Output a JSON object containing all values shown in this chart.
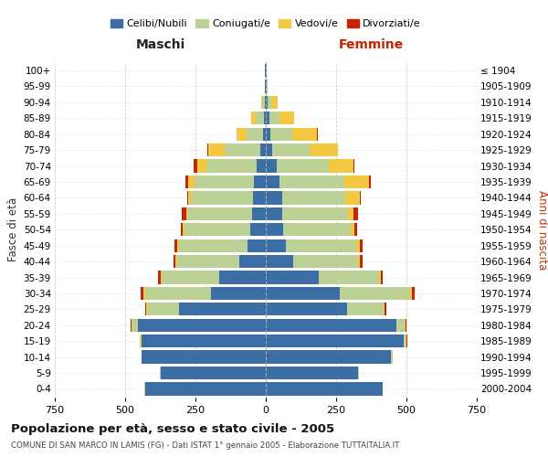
{
  "age_groups": [
    "0-4",
    "5-9",
    "10-14",
    "15-19",
    "20-24",
    "25-29",
    "30-34",
    "35-39",
    "40-44",
    "45-49",
    "50-54",
    "55-59",
    "60-64",
    "65-69",
    "70-74",
    "75-79",
    "80-84",
    "85-89",
    "90-94",
    "95-99",
    "100+"
  ],
  "birth_years": [
    "2000-2004",
    "1995-1999",
    "1990-1994",
    "1985-1989",
    "1980-1984",
    "1975-1979",
    "1970-1974",
    "1965-1969",
    "1960-1964",
    "1955-1959",
    "1950-1954",
    "1945-1949",
    "1940-1944",
    "1935-1939",
    "1930-1934",
    "1925-1929",
    "1920-1924",
    "1915-1919",
    "1910-1914",
    "1905-1909",
    "≤ 1904"
  ],
  "male": {
    "celibi": [
      430,
      375,
      440,
      440,
      455,
      310,
      195,
      165,
      95,
      65,
      55,
      50,
      45,
      42,
      32,
      18,
      10,
      8,
      4,
      2,
      2
    ],
    "coniugati": [
      2,
      2,
      2,
      5,
      18,
      110,
      235,
      205,
      220,
      245,
      235,
      228,
      220,
      210,
      178,
      128,
      58,
      28,
      8,
      2,
      0
    ],
    "vedovi": [
      0,
      0,
      0,
      2,
      5,
      5,
      5,
      5,
      5,
      5,
      5,
      5,
      10,
      25,
      35,
      60,
      35,
      15,
      5,
      0,
      0
    ],
    "divorziati": [
      0,
      0,
      0,
      2,
      2,
      5,
      10,
      8,
      8,
      10,
      8,
      15,
      5,
      10,
      10,
      2,
      2,
      2,
      0,
      0,
      0
    ]
  },
  "female": {
    "nubili": [
      415,
      328,
      445,
      490,
      465,
      288,
      262,
      188,
      98,
      73,
      63,
      58,
      58,
      48,
      38,
      22,
      15,
      12,
      7,
      3,
      2
    ],
    "coniugate": [
      2,
      2,
      5,
      8,
      28,
      130,
      252,
      215,
      230,
      250,
      240,
      235,
      225,
      230,
      185,
      133,
      78,
      38,
      14,
      3,
      0
    ],
    "vedove": [
      0,
      0,
      0,
      2,
      5,
      5,
      5,
      5,
      8,
      10,
      12,
      20,
      50,
      90,
      90,
      100,
      90,
      50,
      20,
      2,
      0
    ],
    "divorziate": [
      0,
      0,
      0,
      2,
      2,
      5,
      10,
      8,
      8,
      12,
      10,
      15,
      5,
      5,
      3,
      3,
      3,
      2,
      0,
      0,
      0
    ]
  },
  "colors": {
    "celibi_nubili": "#3a6ea5",
    "coniugati_e": "#bcd196",
    "vedovi_e": "#f5c842",
    "divorziati_e": "#cc2200"
  },
  "xlim": 750,
  "title_main": "Popolazione per età, sesso e stato civile - 2005",
  "title_sub": "COMUNE DI SAN MARCO IN LAMIS (FG) - Dati ISTAT 1° gennaio 2005 - Elaborazione TUTTAITALIA.IT",
  "ylabel_left": "Fasce di età",
  "ylabel_right": "Anni di nascita",
  "background_color": "#ffffff",
  "grid_color": "#cccccc"
}
